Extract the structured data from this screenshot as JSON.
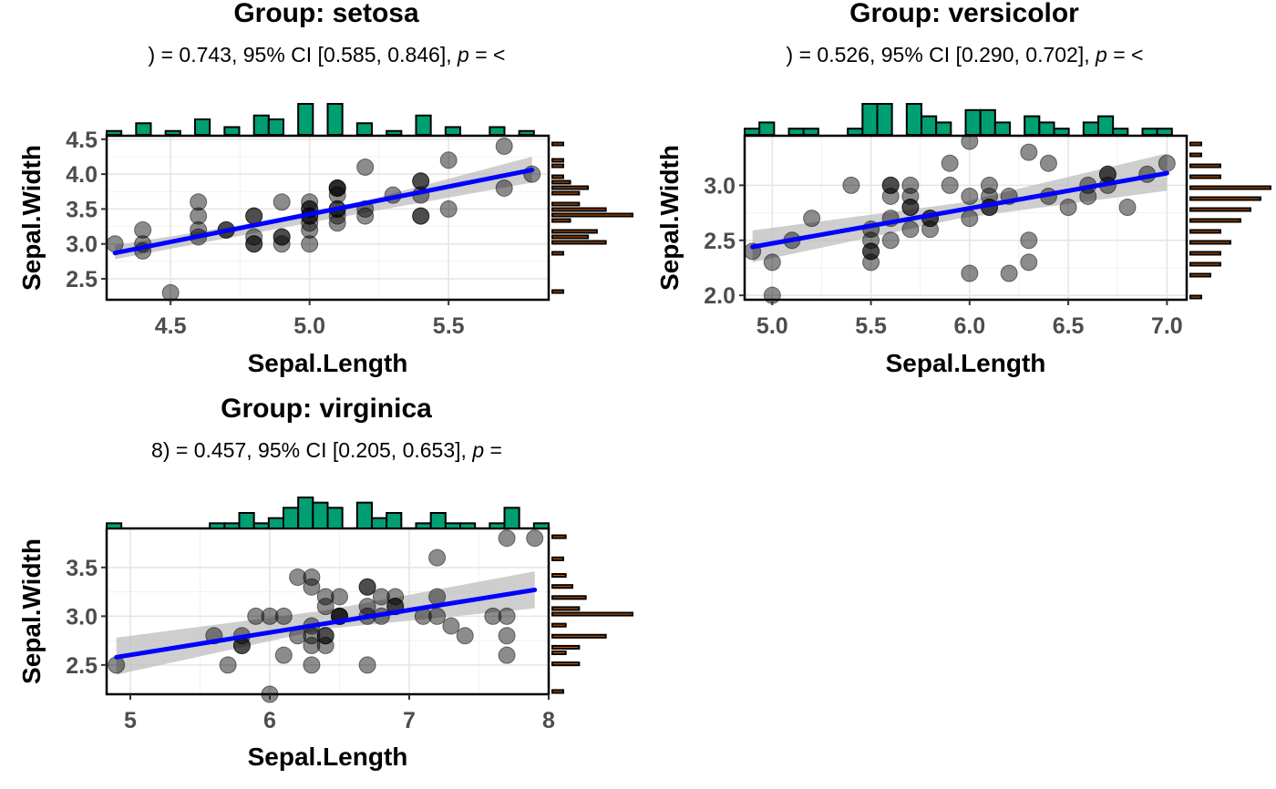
{
  "colors": {
    "top_hist": "#009E73",
    "side_hist": "#D55E00",
    "line": "#0000FF",
    "ribbon": "#BDBDBD",
    "points": "#000000"
  },
  "chart_data": [
    {
      "type": "scatter",
      "title": "Group: setosa",
      "subtitle": ") = 0.743, 95% CI [0.585, 0.846], p = <",
      "xlabel": "Sepal.Length",
      "ylabel": "Sepal.Width",
      "xlim": [
        4.27,
        5.86
      ],
      "ylim": [
        2.2,
        4.55
      ],
      "xticks": [
        "4.5",
        "5.0",
        "5.5"
      ],
      "xtick_values": [
        4.5,
        5.0,
        5.5
      ],
      "yticks": [
        "2.5",
        "3.0",
        "3.5",
        "4.0",
        "4.5"
      ],
      "ytick_values": [
        2.5,
        3.0,
        3.5,
        4.0,
        4.5
      ],
      "grid": true,
      "fit_line": {
        "x0": 4.3,
        "y0": 2.87,
        "x1": 5.8,
        "y1": 4.06
      },
      "ribbon": {
        "lower": [
          2.78,
          3.34,
          3.88
        ],
        "upper": [
          2.98,
          3.46,
          4.25
        ]
      },
      "points": [
        {
          "x": 5.1,
          "y": 3.5
        },
        {
          "x": 4.9,
          "y": 3.0
        },
        {
          "x": 4.7,
          "y": 3.2
        },
        {
          "x": 4.6,
          "y": 3.1
        },
        {
          "x": 5.0,
          "y": 3.6
        },
        {
          "x": 5.4,
          "y": 3.9
        },
        {
          "x": 4.6,
          "y": 3.4
        },
        {
          "x": 5.0,
          "y": 3.4
        },
        {
          "x": 4.4,
          "y": 2.9
        },
        {
          "x": 4.9,
          "y": 3.1
        },
        {
          "x": 5.4,
          "y": 3.7
        },
        {
          "x": 4.8,
          "y": 3.4
        },
        {
          "x": 4.8,
          "y": 3.0
        },
        {
          "x": 4.3,
          "y": 3.0
        },
        {
          "x": 5.8,
          "y": 4.0
        },
        {
          "x": 5.7,
          "y": 4.4
        },
        {
          "x": 5.4,
          "y": 3.9
        },
        {
          "x": 5.1,
          "y": 3.5
        },
        {
          "x": 5.7,
          "y": 3.8
        },
        {
          "x": 5.1,
          "y": 3.8
        },
        {
          "x": 5.4,
          "y": 3.4
        },
        {
          "x": 5.1,
          "y": 3.7
        },
        {
          "x": 4.6,
          "y": 3.6
        },
        {
          "x": 5.1,
          "y": 3.3
        },
        {
          "x": 4.8,
          "y": 3.4
        },
        {
          "x": 5.0,
          "y": 3.0
        },
        {
          "x": 5.0,
          "y": 3.4
        },
        {
          "x": 5.2,
          "y": 3.5
        },
        {
          "x": 5.2,
          "y": 3.4
        },
        {
          "x": 4.7,
          "y": 3.2
        },
        {
          "x": 4.8,
          "y": 3.1
        },
        {
          "x": 5.4,
          "y": 3.4
        },
        {
          "x": 5.2,
          "y": 4.1
        },
        {
          "x": 5.5,
          "y": 4.2
        },
        {
          "x": 4.9,
          "y": 3.1
        },
        {
          "x": 5.0,
          "y": 3.2
        },
        {
          "x": 5.5,
          "y": 3.5
        },
        {
          "x": 4.9,
          "y": 3.6
        },
        {
          "x": 4.4,
          "y": 3.0
        },
        {
          "x": 5.1,
          "y": 3.4
        },
        {
          "x": 5.0,
          "y": 3.5
        },
        {
          "x": 4.5,
          "y": 2.3
        },
        {
          "x": 4.4,
          "y": 3.2
        },
        {
          "x": 5.0,
          "y": 3.5
        },
        {
          "x": 5.1,
          "y": 3.8
        },
        {
          "x": 4.8,
          "y": 3.0
        },
        {
          "x": 5.1,
          "y": 3.8
        },
        {
          "x": 4.6,
          "y": 3.2
        },
        {
          "x": 5.3,
          "y": 3.7
        },
        {
          "x": 5.0,
          "y": 3.3
        }
      ]
    },
    {
      "type": "scatter",
      "title": "Group: versicolor",
      "subtitle": ") = 0.526, 95% CI [0.290, 0.702], p = <",
      "xlabel": "Sepal.Length",
      "ylabel": "Sepal.Width",
      "xlim": [
        4.86,
        7.1
      ],
      "ylim": [
        1.96,
        3.45
      ],
      "xticks": [
        "5.0",
        "5.5",
        "6.0",
        "6.5",
        "7.0"
      ],
      "xtick_values": [
        5.0,
        5.5,
        6.0,
        6.5,
        7.0
      ],
      "yticks": [
        "2.0",
        "2.5",
        "3.0"
      ],
      "ytick_values": [
        2.0,
        2.5,
        3.0
      ],
      "grid": true,
      "fit_line": {
        "x0": 4.9,
        "y0": 2.44,
        "x1": 7.0,
        "y1": 3.11
      },
      "ribbon": {
        "lower": [
          2.3,
          2.7,
          2.95
        ],
        "upper": [
          2.59,
          2.84,
          3.29
        ]
      },
      "points": [
        {
          "x": 7.0,
          "y": 3.2
        },
        {
          "x": 6.4,
          "y": 3.2
        },
        {
          "x": 6.9,
          "y": 3.1
        },
        {
          "x": 5.5,
          "y": 2.3
        },
        {
          "x": 6.5,
          "y": 2.8
        },
        {
          "x": 5.7,
          "y": 2.8
        },
        {
          "x": 6.3,
          "y": 3.3
        },
        {
          "x": 4.9,
          "y": 2.4
        },
        {
          "x": 6.6,
          "y": 2.9
        },
        {
          "x": 5.2,
          "y": 2.7
        },
        {
          "x": 5.0,
          "y": 2.0
        },
        {
          "x": 5.9,
          "y": 3.0
        },
        {
          "x": 6.0,
          "y": 2.2
        },
        {
          "x": 6.1,
          "y": 2.9
        },
        {
          "x": 5.6,
          "y": 2.9
        },
        {
          "x": 6.7,
          "y": 3.1
        },
        {
          "x": 5.6,
          "y": 3.0
        },
        {
          "x": 5.8,
          "y": 2.7
        },
        {
          "x": 6.2,
          "y": 2.2
        },
        {
          "x": 5.6,
          "y": 2.5
        },
        {
          "x": 5.9,
          "y": 3.2
        },
        {
          "x": 6.1,
          "y": 2.8
        },
        {
          "x": 6.3,
          "y": 2.5
        },
        {
          "x": 6.1,
          "y": 2.8
        },
        {
          "x": 6.4,
          "y": 2.9
        },
        {
          "x": 6.6,
          "y": 3.0
        },
        {
          "x": 6.8,
          "y": 2.8
        },
        {
          "x": 6.7,
          "y": 3.0
        },
        {
          "x": 6.0,
          "y": 2.9
        },
        {
          "x": 5.7,
          "y": 2.6
        },
        {
          "x": 5.5,
          "y": 2.4
        },
        {
          "x": 5.5,
          "y": 2.4
        },
        {
          "x": 5.8,
          "y": 2.7
        },
        {
          "x": 6.0,
          "y": 2.7
        },
        {
          "x": 5.4,
          "y": 3.0
        },
        {
          "x": 6.0,
          "y": 3.4
        },
        {
          "x": 6.7,
          "y": 3.1
        },
        {
          "x": 6.3,
          "y": 2.3
        },
        {
          "x": 5.6,
          "y": 3.0
        },
        {
          "x": 5.5,
          "y": 2.5
        },
        {
          "x": 5.5,
          "y": 2.6
        },
        {
          "x": 6.1,
          "y": 3.0
        },
        {
          "x": 5.8,
          "y": 2.6
        },
        {
          "x": 5.0,
          "y": 2.3
        },
        {
          "x": 5.6,
          "y": 2.7
        },
        {
          "x": 5.7,
          "y": 3.0
        },
        {
          "x": 5.7,
          "y": 2.9
        },
        {
          "x": 6.2,
          "y": 2.9
        },
        {
          "x": 5.1,
          "y": 2.5
        },
        {
          "x": 5.7,
          "y": 2.8
        }
      ]
    },
    {
      "type": "scatter",
      "title": "Group: virginica",
      "subtitle": "8) = 0.457, 95% CI [0.205, 0.653], p =",
      "xlabel": "Sepal.Length",
      "ylabel": "Sepal.Width",
      "xlim": [
        4.83,
        8.0
      ],
      "ylim": [
        2.2,
        3.9
      ],
      "xticks": [
        "5",
        "6",
        "7",
        "8"
      ],
      "xtick_values": [
        5,
        6,
        7,
        8
      ],
      "yticks": [
        "2.5",
        "3.0",
        "3.5"
      ],
      "ytick_values": [
        2.5,
        3.0,
        3.5
      ],
      "grid": true,
      "fit_line": {
        "x0": 4.9,
        "y0": 2.58,
        "x1": 7.9,
        "y1": 3.27
      },
      "ribbon": {
        "lower": [
          2.4,
          2.87,
          3.08
        ],
        "upper": [
          2.78,
          3.06,
          3.46
        ]
      },
      "points": [
        {
          "x": 6.3,
          "y": 3.3
        },
        {
          "x": 5.8,
          "y": 2.7
        },
        {
          "x": 7.1,
          "y": 3.0
        },
        {
          "x": 6.3,
          "y": 2.9
        },
        {
          "x": 6.5,
          "y": 3.0
        },
        {
          "x": 7.6,
          "y": 3.0
        },
        {
          "x": 4.9,
          "y": 2.5
        },
        {
          "x": 7.3,
          "y": 2.9
        },
        {
          "x": 6.7,
          "y": 2.5
        },
        {
          "x": 7.2,
          "y": 3.6
        },
        {
          "x": 6.5,
          "y": 3.2
        },
        {
          "x": 6.4,
          "y": 2.7
        },
        {
          "x": 6.8,
          "y": 3.0
        },
        {
          "x": 5.7,
          "y": 2.5
        },
        {
          "x": 5.8,
          "y": 2.8
        },
        {
          "x": 6.4,
          "y": 3.2
        },
        {
          "x": 6.5,
          "y": 3.0
        },
        {
          "x": 7.7,
          "y": 3.8
        },
        {
          "x": 7.7,
          "y": 2.6
        },
        {
          "x": 6.0,
          "y": 2.2
        },
        {
          "x": 6.9,
          "y": 3.2
        },
        {
          "x": 5.6,
          "y": 2.8
        },
        {
          "x": 7.7,
          "y": 2.8
        },
        {
          "x": 6.3,
          "y": 2.7
        },
        {
          "x": 6.7,
          "y": 3.3
        },
        {
          "x": 7.2,
          "y": 3.2
        },
        {
          "x": 6.2,
          "y": 2.8
        },
        {
          "x": 6.1,
          "y": 3.0
        },
        {
          "x": 6.4,
          "y": 2.8
        },
        {
          "x": 7.2,
          "y": 3.0
        },
        {
          "x": 7.4,
          "y": 2.8
        },
        {
          "x": 7.9,
          "y": 3.8
        },
        {
          "x": 6.4,
          "y": 2.8
        },
        {
          "x": 6.3,
          "y": 2.8
        },
        {
          "x": 6.1,
          "y": 2.6
        },
        {
          "x": 7.7,
          "y": 3.0
        },
        {
          "x": 6.3,
          "y": 3.4
        },
        {
          "x": 6.4,
          "y": 3.1
        },
        {
          "x": 6.0,
          "y": 3.0
        },
        {
          "x": 6.9,
          "y": 3.1
        },
        {
          "x": 6.7,
          "y": 3.1
        },
        {
          "x": 6.9,
          "y": 3.1
        },
        {
          "x": 5.8,
          "y": 2.7
        },
        {
          "x": 6.8,
          "y": 3.2
        },
        {
          "x": 6.7,
          "y": 3.3
        },
        {
          "x": 6.7,
          "y": 3.0
        },
        {
          "x": 6.3,
          "y": 2.5
        },
        {
          "x": 6.5,
          "y": 3.0
        },
        {
          "x": 6.2,
          "y": 3.4
        },
        {
          "x": 5.9,
          "y": 3.0
        }
      ]
    }
  ]
}
